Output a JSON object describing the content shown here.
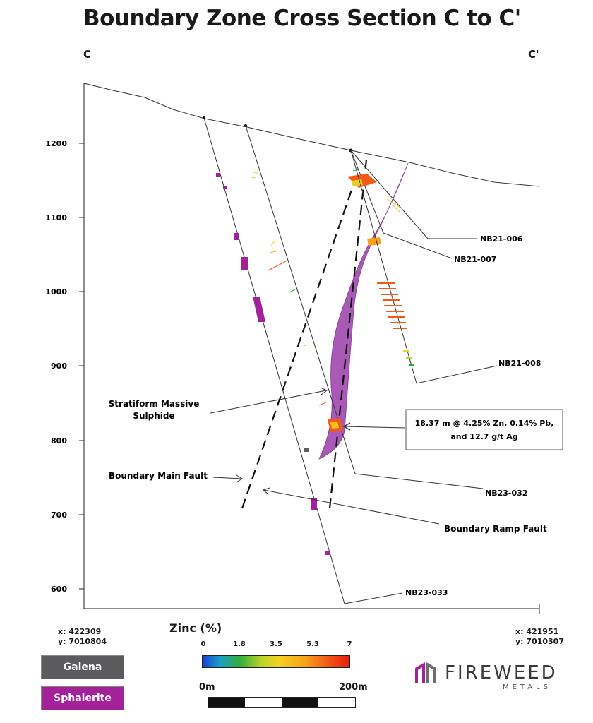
{
  "title": "Boundary Zone Cross Section C to C'",
  "section": {
    "start_label": "C",
    "end_label": "C'"
  },
  "elevation_axis": {
    "ticks": [
      "1200",
      "1100",
      "1000",
      "900",
      "800",
      "700",
      "600"
    ]
  },
  "holes": [
    {
      "id": "NB21-006"
    },
    {
      "id": "NB21-007"
    },
    {
      "id": "NB21-008"
    },
    {
      "id": "NB23-032"
    },
    {
      "id": "NB23-033"
    }
  ],
  "annotations": {
    "stratiform": "Stratiform Massive Sulphide",
    "stratiform_line1": "Stratiform Massive",
    "stratiform_line2": "Sulphide",
    "main_fault": "Boundary Main Fault",
    "ramp_fault": "Boundary Ramp Fault",
    "intercept_line1": "18.37 m @ 4.25% Zn, 0.14% Pb,",
    "intercept_line2": "and 12.7 g/t Ag"
  },
  "coords": {
    "left_x": "x: 422309",
    "left_y": "y: 7010804",
    "right_x": "x: 421951",
    "right_y": "y: 7010307"
  },
  "legend": {
    "galena": {
      "label": "Galena",
      "color": "#5b5b5d"
    },
    "sphalerite": {
      "label": "Sphalerite",
      "color": "#a3229a"
    }
  },
  "zinc_scale": {
    "title": "Zinc (%)",
    "ticks": [
      "0",
      "1.8",
      "3.5",
      "5.3",
      "7"
    ]
  },
  "distance_scale": {
    "start": "0m",
    "end": "200m"
  },
  "logo": {
    "name": "FIREWEED",
    "sub": "METALS",
    "icon": "fireweed-logo-icon"
  },
  "colors": {
    "sulphide": "#a24bb0",
    "zn_high": "#f35a17",
    "zn_low": "#e3d12a"
  }
}
